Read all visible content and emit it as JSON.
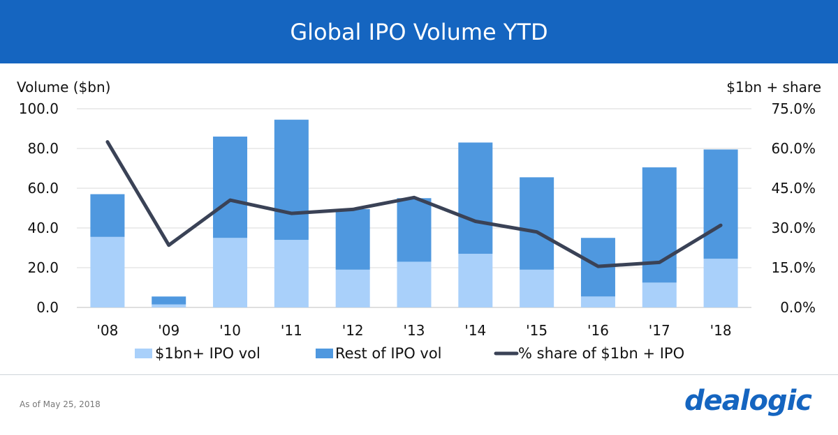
{
  "header": {
    "title": "Global IPO Volume YTD"
  },
  "chart_data": {
    "type": "bar",
    "stacked": true,
    "title": "Global IPO Volume YTD",
    "ylabel": "Volume ($bn)",
    "y2label": "$1bn + share",
    "ylim": [
      0,
      100
    ],
    "y2lim": [
      0,
      75
    ],
    "y_ticks": [
      "0.0",
      "20.0",
      "40.0",
      "60.0",
      "80.0",
      "100.0"
    ],
    "y2_ticks": [
      "0.0%",
      "15.0%",
      "30.0%",
      "45.0%",
      "60.0%",
      "75.0%"
    ],
    "categories": [
      "'08",
      "'09",
      "'10",
      "'11",
      "'12",
      "'13",
      "'14",
      "'15",
      "'16",
      "'17",
      "'18"
    ],
    "series": [
      {
        "name": "$1bn+ IPO vol",
        "kind": "bar",
        "color": "#a9d0fa",
        "values": [
          35.5,
          1.5,
          35,
          34,
          19,
          23,
          27,
          19,
          5.5,
          12.5,
          24.5
        ]
      },
      {
        "name": "Rest of IPO vol",
        "kind": "bar",
        "color": "#4f98df",
        "values": [
          21.5,
          4,
          51,
          60.5,
          30.5,
          32,
          56,
          46.5,
          29.5,
          58,
          55
        ]
      },
      {
        "name": "% share of $1bn + IPO",
        "kind": "line",
        "axis": "right",
        "color": "#3a4256",
        "values": [
          62.5,
          23.5,
          40.5,
          35.5,
          37,
          41.5,
          32.5,
          28.5,
          15.5,
          17,
          31
        ]
      }
    ],
    "legend_position": "bottom"
  },
  "footer": {
    "as_of": "As of May 25, 2018",
    "logo_text": "dealogic"
  }
}
